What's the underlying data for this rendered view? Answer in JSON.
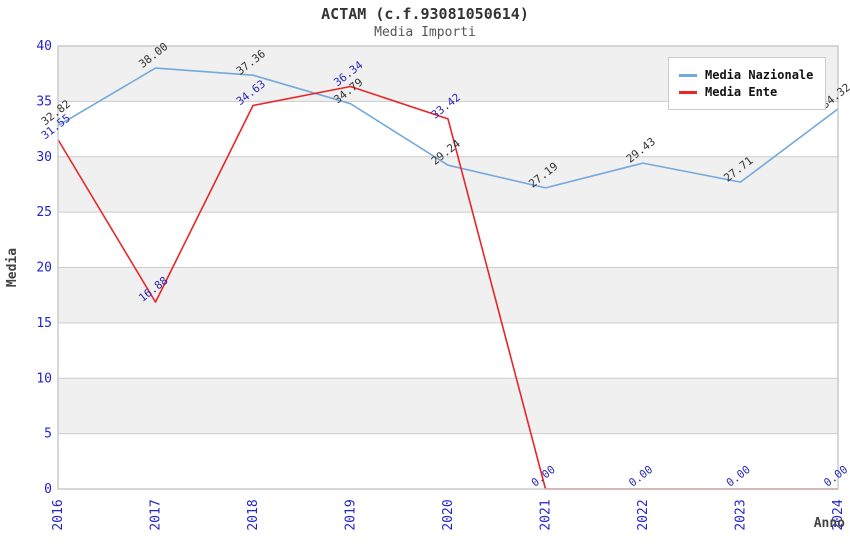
{
  "header": {
    "title": "ACTAM (c.f.93081050614)",
    "subtitle": "Media Importi"
  },
  "chart_data": {
    "type": "line",
    "title": "ACTAM (c.f.93081050614)",
    "subtitle": "Media Importi",
    "xlabel": "Anno",
    "ylabel": "Media",
    "categories": [
      "2016",
      "2017",
      "2018",
      "2019",
      "2020",
      "2021",
      "2022",
      "2023",
      "2024"
    ],
    "series": [
      {
        "name": "Media Nazionale",
        "color": "#74a9dc",
        "label_color": "#333333",
        "values": [
          32.82,
          38.0,
          37.36,
          34.79,
          29.24,
          27.19,
          29.43,
          27.71,
          34.32
        ]
      },
      {
        "name": "Media Ente",
        "color": "#e8262a",
        "label_color": "#2a2ab8",
        "values": [
          31.55,
          16.88,
          34.63,
          36.34,
          33.42,
          0.0,
          0.0,
          0.0,
          0.0
        ]
      }
    ],
    "ylim": [
      0,
      40
    ],
    "ytick_step": 5,
    "yticks": [
      0,
      5,
      10,
      15,
      20,
      25,
      30,
      35,
      40
    ],
    "grid": "horizontal",
    "band_fill": "#f0f0f0",
    "grid_color": "#cccccc",
    "border_color": "#c8c8c8",
    "tick_label_color": "#2424cc",
    "axis_title_color": "#444444",
    "legend_position": "top-right",
    "data_label_format": "2-decimals",
    "x_tick_rotation": -90,
    "data_label_rotation": -38
  }
}
